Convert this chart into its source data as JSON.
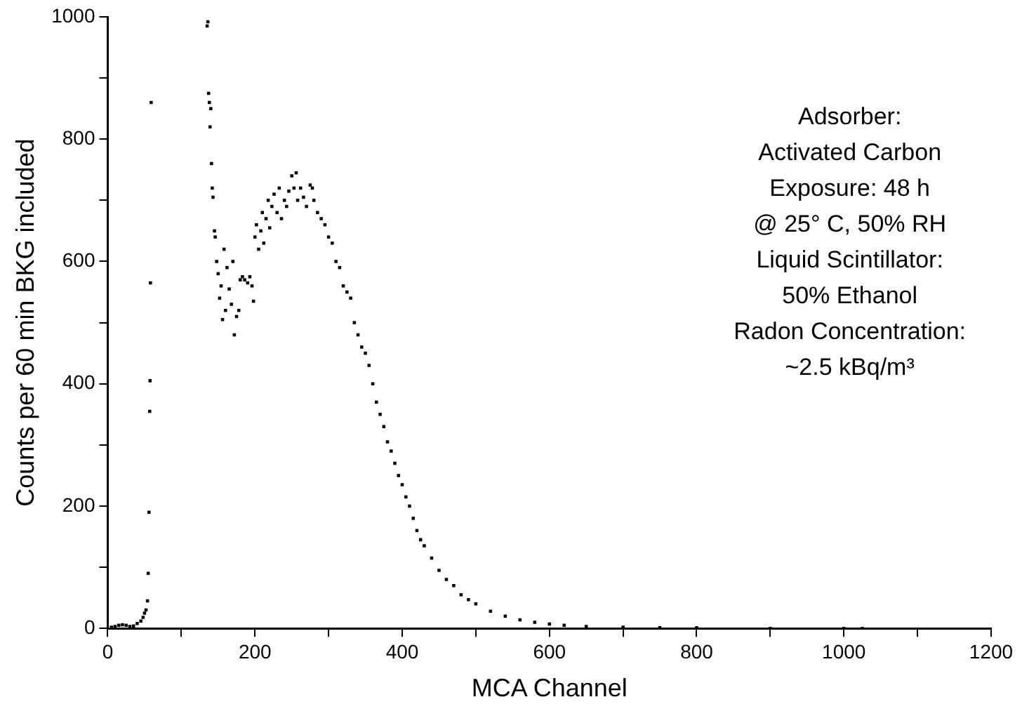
{
  "chart_data": {
    "type": "scatter",
    "xlabel": "MCA Channel",
    "ylabel": "Counts per 60 min BKG included",
    "marker": "square",
    "grid": false,
    "legend": false,
    "xlim": [
      0,
      1200
    ],
    "ylim": [
      0,
      1000
    ],
    "xticks": [
      0,
      {
        "value": 100,
        "label": null
      },
      200,
      {
        "value": 300,
        "label": null
      },
      400,
      {
        "value": 500,
        "label": null
      },
      600,
      {
        "value": 700,
        "label": null
      },
      800,
      {
        "value": 900,
        "label": null
      },
      1000,
      {
        "value": 1100,
        "label": null
      },
      1200
    ],
    "yticks": [
      0,
      {
        "value": 100,
        "label": null
      },
      200,
      {
        "value": 300,
        "label": null
      },
      400,
      {
        "value": 500,
        "label": null
      },
      600,
      {
        "value": 700,
        "label": null
      },
      800,
      {
        "value": 900,
        "label": null
      },
      1000
    ],
    "annotations": [
      "Adsorber:",
      "Activated Carbon",
      "Exposure: 48 h",
      "@ 25° C, 50% RH",
      "Liquid Scintillator:",
      "50% Ethanol",
      "Radon Concentration:",
      "~2.5 kBq/m³"
    ],
    "series": [
      {
        "color": "#000000",
        "x": [
          5,
          10,
          15,
          20,
          25,
          30,
          35,
          40,
          45,
          48,
          50,
          52,
          54,
          55,
          56,
          57,
          57.5,
          58,
          59,
          135,
          136,
          137,
          138,
          139,
          140,
          141,
          142,
          143,
          145,
          146,
          148,
          150,
          152,
          154,
          156,
          158,
          160,
          162,
          165,
          168,
          170,
          172,
          175,
          178,
          180,
          183,
          186,
          190,
          193,
          196,
          198,
          200,
          202,
          205,
          208,
          210,
          212,
          215,
          218,
          220,
          223,
          226,
          230,
          233,
          236,
          240,
          243,
          246,
          250,
          253,
          256,
          258,
          262,
          266,
          270,
          275,
          278,
          280,
          285,
          290,
          295,
          300,
          305,
          310,
          315,
          320,
          325,
          330,
          335,
          340,
          345,
          350,
          355,
          360,
          365,
          370,
          375,
          380,
          385,
          390,
          395,
          400,
          405,
          410,
          415,
          420,
          425,
          430,
          440,
          450,
          460,
          470,
          480,
          490,
          500,
          520,
          540,
          560,
          580,
          600,
          620,
          650,
          700,
          750,
          800,
          900,
          1000,
          1025
        ],
        "values": [
          2,
          3,
          5,
          6,
          5,
          3,
          4,
          8,
          12,
          18,
          25,
          30,
          45,
          90,
          190,
          355,
          405,
          565,
          860,
          985,
          992,
          875,
          860,
          820,
          850,
          760,
          720,
          705,
          650,
          640,
          600,
          580,
          540,
          560,
          505,
          620,
          520,
          590,
          555,
          530,
          600,
          480,
          510,
          520,
          570,
          575,
          570,
          565,
          575,
          560,
          535,
          640,
          660,
          620,
          650,
          680,
          630,
          670,
          700,
          655,
          690,
          710,
          680,
          720,
          670,
          700,
          690,
          715,
          740,
          720,
          745,
          700,
          720,
          705,
          690,
          725,
          720,
          700,
          680,
          670,
          660,
          640,
          630,
          600,
          590,
          560,
          550,
          540,
          500,
          480,
          460,
          450,
          430,
          400,
          370,
          350,
          330,
          305,
          290,
          270,
          250,
          235,
          215,
          200,
          180,
          160,
          145,
          135,
          115,
          95,
          80,
          70,
          55,
          47,
          40,
          28,
          20,
          14,
          10,
          7,
          5,
          3,
          2,
          1,
          1,
          0,
          0,
          0
        ]
      }
    ]
  }
}
